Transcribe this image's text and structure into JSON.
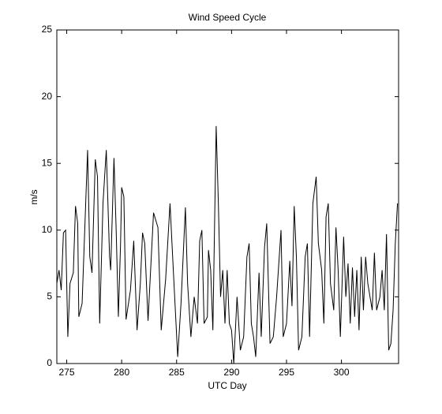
{
  "chart_data": {
    "type": "line",
    "title": "Wind Speed Cycle",
    "x_label": "UTC Day",
    "y_label": "m/s",
    "x": [
      274.1,
      274.3,
      274.5,
      274.7,
      274.9,
      275.1,
      275.3,
      275.6,
      275.8,
      276.0,
      276.1,
      276.4,
      276.9,
      277.1,
      277.3,
      277.6,
      277.8,
      278.0,
      278.3,
      278.6,
      278.9,
      279.0,
      279.3,
      279.5,
      279.7,
      279.9,
      280.0,
      280.2,
      280.4,
      280.8,
      281.1,
      281.4,
      281.7,
      281.9,
      282.1,
      282.4,
      282.9,
      283.3,
      283.6,
      284.0,
      284.4,
      284.7,
      285.1,
      285.4,
      285.8,
      286.0,
      286.3,
      286.6,
      286.9,
      287.1,
      287.3,
      287.5,
      287.8,
      287.9,
      288.1,
      288.3,
      288.6,
      288.8,
      289.0,
      289.2,
      289.4,
      289.6,
      289.8,
      290.0,
      290.2,
      290.5,
      290.8,
      291.1,
      291.4,
      291.6,
      291.8,
      292.0,
      292.2,
      292.5,
      292.7,
      293.0,
      293.2,
      293.5,
      293.8,
      294.1,
      294.5,
      294.7,
      295.0,
      295.3,
      295.5,
      295.7,
      295.9,
      296.1,
      296.4,
      296.7,
      296.9,
      297.1,
      297.4,
      297.7,
      297.9,
      298.2,
      298.4,
      298.6,
      298.8,
      299.0,
      299.3,
      299.5,
      299.7,
      299.9,
      300.2,
      300.4,
      300.6,
      300.8,
      301.0,
      301.2,
      301.4,
      301.6,
      301.8,
      302.0,
      302.2,
      302.4,
      302.6,
      302.8,
      303.0,
      303.2,
      303.5,
      303.7,
      303.9,
      304.1,
      304.3,
      304.5,
      304.7,
      304.9,
      305.1
    ],
    "series": [
      {
        "name": "wind speed",
        "color": "#000000",
        "values": [
          6,
          7,
          5.5,
          9.8,
          10,
          2,
          6,
          6.8,
          11.8,
          10.5,
          3.5,
          4.5,
          16,
          8,
          6.8,
          15.3,
          14,
          3,
          12,
          16,
          8,
          7,
          15.4,
          10,
          3.5,
          9,
          13.2,
          12.5,
          3.3,
          5.5,
          9.2,
          2.5,
          6,
          9.8,
          9,
          3.2,
          11.3,
          10.2,
          2.5,
          6.3,
          12,
          7,
          0.5,
          4.5,
          11.7,
          6,
          2,
          5,
          3,
          9.2,
          10,
          3,
          3.5,
          8.5,
          7,
          2.5,
          17.8,
          12,
          5,
          7,
          3,
          7,
          3,
          2.5,
          0,
          5,
          1,
          2,
          8,
          9,
          3,
          2,
          0.5,
          6.8,
          2,
          8.7,
          10.5,
          1.5,
          2,
          5,
          10,
          2,
          3,
          7.7,
          4.3,
          11.8,
          8,
          1,
          2,
          8,
          9,
          2,
          12,
          14,
          9,
          7,
          3,
          11,
          12,
          6,
          4,
          10.2,
          7,
          2,
          9.5,
          5,
          7.5,
          3,
          7.2,
          3.5,
          7,
          2.5,
          8,
          4,
          8,
          6,
          5,
          4,
          8.3,
          4,
          5,
          7,
          4,
          9.7,
          1,
          1.5,
          4,
          9,
          12
        ]
      }
    ],
    "xlim": [
      274.1,
      305.2
    ],
    "ylim": [
      0,
      25
    ],
    "xticks": [
      275,
      280,
      285,
      290,
      295,
      300
    ],
    "yticks": [
      0,
      5,
      10,
      15,
      20,
      25
    ]
  }
}
